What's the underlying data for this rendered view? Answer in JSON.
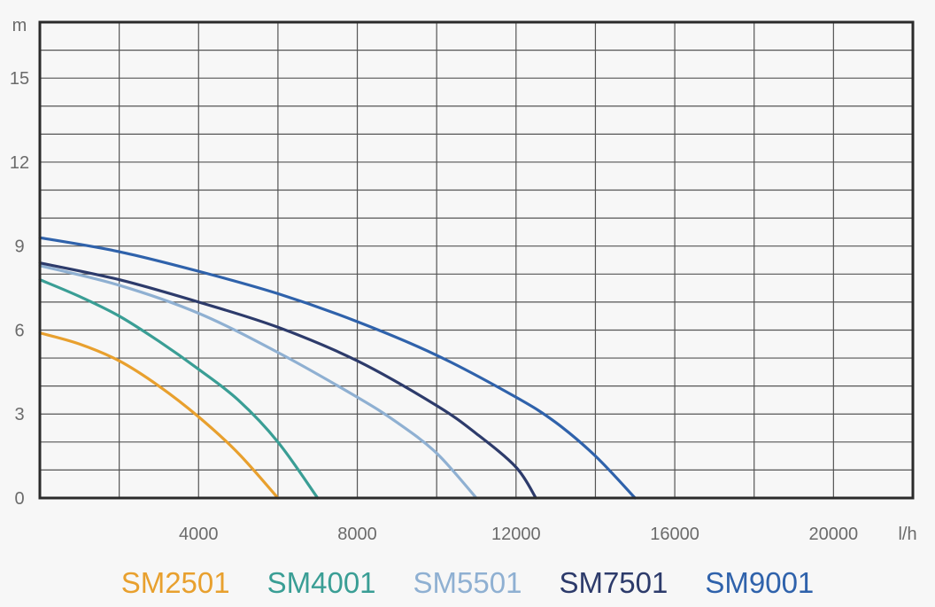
{
  "chart_data": {
    "type": "line",
    "y_unit": "m",
    "x_unit": "l/h",
    "xlim": [
      0,
      22000
    ],
    "ylim": [
      0,
      17
    ],
    "x_ticks": [
      4000,
      8000,
      12000,
      16000,
      20000
    ],
    "x_tick_labels": [
      "4000",
      "8000",
      "12000",
      "16000",
      "20000"
    ],
    "y_ticks": [
      0,
      3,
      6,
      9,
      12,
      15
    ],
    "y_tick_labels": [
      "0",
      "3",
      "6",
      "9",
      "12",
      "15"
    ],
    "grid": true,
    "legend_position": "bottom",
    "series": [
      {
        "name": "SM2501",
        "color": "#e8a02e",
        "points": [
          [
            0,
            5.9
          ],
          [
            1000,
            5.5
          ],
          [
            2000,
            4.9
          ],
          [
            3000,
            4.0
          ],
          [
            4000,
            2.9
          ],
          [
            5000,
            1.6
          ],
          [
            6000,
            0
          ]
        ]
      },
      {
        "name": "SM4001",
        "color": "#3a9e95",
        "points": [
          [
            0,
            7.8
          ],
          [
            1000,
            7.2
          ],
          [
            2000,
            6.5
          ],
          [
            3000,
            5.6
          ],
          [
            4000,
            4.6
          ],
          [
            5000,
            3.5
          ],
          [
            6000,
            2.0
          ],
          [
            7000,
            0
          ]
        ]
      },
      {
        "name": "SM5501",
        "color": "#8fb0d2",
        "points": [
          [
            0,
            8.3
          ],
          [
            2000,
            7.6
          ],
          [
            4000,
            6.6
          ],
          [
            6000,
            5.2
          ],
          [
            8000,
            3.6
          ],
          [
            9000,
            2.7
          ],
          [
            10000,
            1.6
          ],
          [
            11000,
            0
          ]
        ]
      },
      {
        "name": "SM7501",
        "color": "#2d3b6b",
        "points": [
          [
            0,
            8.4
          ],
          [
            2000,
            7.8
          ],
          [
            4000,
            7.0
          ],
          [
            6000,
            6.1
          ],
          [
            8000,
            4.9
          ],
          [
            10000,
            3.3
          ],
          [
            11000,
            2.3
          ],
          [
            12000,
            1.1
          ],
          [
            12500,
            0
          ]
        ]
      },
      {
        "name": "SM9001",
        "color": "#2f62ab",
        "points": [
          [
            0,
            9.3
          ],
          [
            2000,
            8.8
          ],
          [
            4000,
            8.1
          ],
          [
            6000,
            7.3
          ],
          [
            8000,
            6.3
          ],
          [
            10000,
            5.1
          ],
          [
            12000,
            3.6
          ],
          [
            13000,
            2.7
          ],
          [
            14000,
            1.5
          ],
          [
            15000,
            0
          ]
        ]
      }
    ]
  }
}
